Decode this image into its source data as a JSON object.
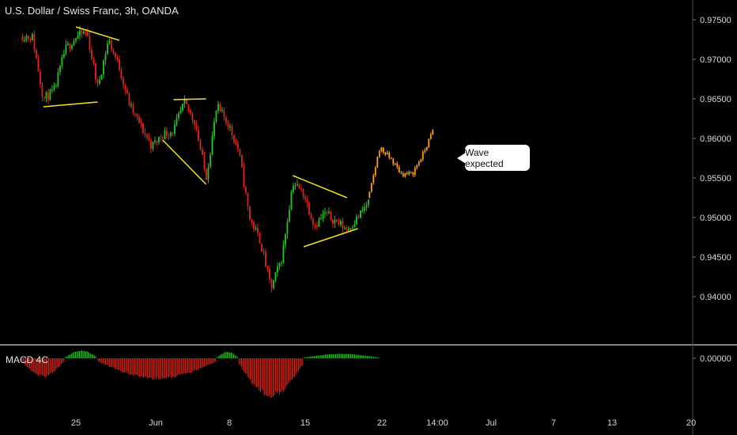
{
  "header": {
    "title": "U.S. Dollar / Swiss Franc, 3h, OANDA"
  },
  "macd": {
    "label": "MACD 4C",
    "zero_label": "0.00000"
  },
  "annotation": {
    "text": "Wave expected"
  },
  "colors": {
    "background": "#000000",
    "up": "#26c526",
    "down": "#e0241b",
    "projection": "#ff9f1a",
    "pattern_lines": "#f5e21f",
    "axis_text": "#d8d8d8",
    "separator": "#ffffff"
  },
  "chart_data": [
    {
      "type": "candlestick",
      "title": "U.S. Dollar / Swiss Franc, 3h, OANDA",
      "y_axis": {
        "ticks": [
          "0.97500",
          "0.97000",
          "0.96500",
          "0.96000",
          "0.95500",
          "0.95000",
          "0.94500",
          "0.94000"
        ],
        "range": [
          0.936,
          0.9763
        ]
      },
      "x_axis": {
        "ticks": [
          "25",
          "Jun",
          "8",
          "15",
          "22",
          "14:00",
          "Jul",
          "7",
          "13",
          "20"
        ]
      },
      "price_path": [
        {
          "x": "May 20",
          "y": 0.973
        },
        {
          "x": "May 21",
          "y": 0.9728
        },
        {
          "x": "May 22",
          "y": 0.965
        },
        {
          "x": "May 23",
          "y": 0.966
        },
        {
          "x": "May 24",
          "y": 0.9712
        },
        {
          "x": "May 25",
          "y": 0.9728
        },
        {
          "x": "May 26",
          "y": 0.9735
        },
        {
          "x": "May 27",
          "y": 0.9665
        },
        {
          "x": "May 28",
          "y": 0.9725
        },
        {
          "x": "May 29",
          "y": 0.969
        },
        {
          "x": "May 30",
          "y": 0.964
        },
        {
          "x": "May 31",
          "y": 0.9615
        },
        {
          "x": "Jun 1",
          "y": 0.959
        },
        {
          "x": "Jun 2",
          "y": 0.9605
        },
        {
          "x": "Jun 3",
          "y": 0.961
        },
        {
          "x": "Jun 4",
          "y": 0.9645
        },
        {
          "x": "Jun 5",
          "y": 0.962
        },
        {
          "x": "Jun 6",
          "y": 0.955
        },
        {
          "x": "Jun 7",
          "y": 0.964
        },
        {
          "x": "Jun 8",
          "y": 0.962
        },
        {
          "x": "Jun 9",
          "y": 0.9585
        },
        {
          "x": "Jun 10",
          "y": 0.95
        },
        {
          "x": "Jun 11",
          "y": 0.947
        },
        {
          "x": "Jun 12",
          "y": 0.941
        },
        {
          "x": "Jun 13",
          "y": 0.945
        },
        {
          "x": "Jun 14",
          "y": 0.9545
        },
        {
          "x": "Jun 15",
          "y": 0.953
        },
        {
          "x": "Jun 16",
          "y": 0.949
        },
        {
          "x": "Jun 17",
          "y": 0.9505
        },
        {
          "x": "Jun 18",
          "y": 0.9495
        },
        {
          "x": "Jun 19",
          "y": 0.9485
        },
        {
          "x": "Jun 20",
          "y": 0.95
        },
        {
          "x": "Jun 21",
          "y": 0.952
        }
      ],
      "projection_path": [
        {
          "x": "Jun 21",
          "y": 0.9525
        },
        {
          "x": "Jun 22",
          "y": 0.9588
        },
        {
          "x": "Jun 23",
          "y": 0.9575
        },
        {
          "x": "Jun 24",
          "y": 0.9555
        },
        {
          "x": "Jun 25",
          "y": 0.9555
        },
        {
          "x": "Jun 26",
          "y": 0.958
        },
        {
          "x": "Jun 27",
          "y": 0.9612
        }
      ],
      "pattern_lines": [
        {
          "from": {
            "x": "May 22",
            "y": 0.964
          },
          "to": {
            "x": "May 27",
            "y": 0.9646
          }
        },
        {
          "from": {
            "x": "May 25",
            "y": 0.9741
          },
          "to": {
            "x": "May 29",
            "y": 0.9724
          }
        },
        {
          "from": {
            "x": "Jun 2",
            "y": 0.9598
          },
          "to": {
            "x": "Jun 6",
            "y": 0.9542
          }
        },
        {
          "from": {
            "x": "Jun 3",
            "y": 0.9649
          },
          "to": {
            "x": "Jun 6",
            "y": 0.965
          }
        },
        {
          "from": {
            "x": "Jun 14",
            "y": 0.9553
          },
          "to": {
            "x": "Jun 19",
            "y": 0.9525
          }
        },
        {
          "from": {
            "x": "Jun 15",
            "y": 0.9463
          },
          "to": {
            "x": "Jun 20",
            "y": 0.9486
          }
        }
      ]
    },
    {
      "type": "histogram",
      "title": "MACD 4C",
      "y_axis": {
        "ticks": [
          "0.00000"
        ]
      },
      "bar_groups": [
        {
          "color": "down",
          "from": "May 20",
          "to": "May 23",
          "min": -0.0028
        },
        {
          "color": "up",
          "from": "May 24",
          "to": "May 26",
          "max": 0.0012
        },
        {
          "color": "down",
          "from": "May 27",
          "to": "Jun 6",
          "min": -0.0032
        },
        {
          "color": "up",
          "from": "Jun 7",
          "to": "Jun 8",
          "max": 0.001
        },
        {
          "color": "down",
          "from": "Jun 9",
          "to": "Jun 14",
          "min": -0.0058
        },
        {
          "color": "up",
          "from": "Jun 15",
          "to": "Jun 21",
          "max": 0.0007
        }
      ]
    }
  ]
}
